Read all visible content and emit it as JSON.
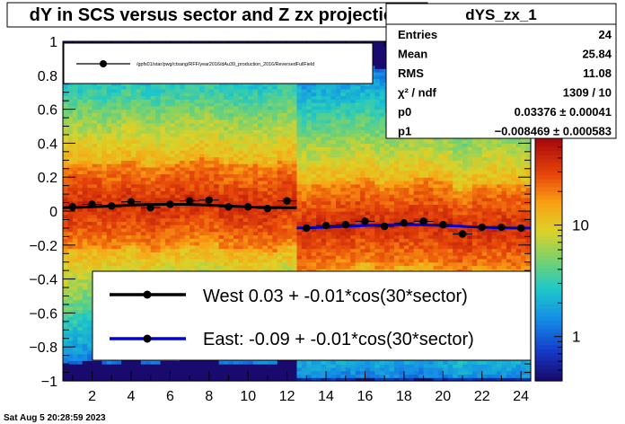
{
  "window": {
    "title": "dY in SCS versus sector and Z zx projection",
    "timestamp": "Sat Aug  5 20:28:59 2023"
  },
  "stats_box": {
    "name": "dYS_zx_1",
    "rows": [
      {
        "label": "Entries",
        "value": "24"
      },
      {
        "label": "Mean",
        "value": "25.84"
      },
      {
        "label": "RMS",
        "value": "11.08"
      },
      {
        "label": "χ² / ndf",
        "value": "1309 / 10"
      },
      {
        "label": "p0",
        "value": "0.03376 ± 0.00041"
      },
      {
        "label": "p1",
        "value": "−0.008469 ± 0.000583"
      }
    ]
  },
  "top_legend": {
    "text": "/gpfs01/star/pwg/ctsang/RFF/year2016/dAu39_production_2016/ReversedFullField"
  },
  "fit_legend": {
    "entries": [
      {
        "label": "West  0.03 + -0.01*cos(30*sector)",
        "color": "#000000"
      },
      {
        "label": "East: -0.09 + -0.01*cos(30*sector)",
        "color": "#0000dd"
      }
    ]
  },
  "chart_data": {
    "type": "scatter",
    "title": "dY in SCS versus sector and Z zx projection",
    "xlim": [
      0.5,
      24.5
    ],
    "ylim": [
      -1,
      1
    ],
    "x_ticks": [
      2,
      4,
      6,
      8,
      10,
      12,
      14,
      16,
      18,
      20,
      22,
      24
    ],
    "y_ticks": [
      -1,
      -0.8,
      -0.6,
      -0.4,
      -0.2,
      0,
      0.2,
      0.4,
      0.6,
      0.8,
      1
    ],
    "y_tick_labels": [
      "−1",
      "−0.8",
      "−0.6",
      "−0.4",
      "−0.2",
      "0",
      "0.2",
      "0.4",
      "0.6",
      "0.8",
      "1"
    ],
    "colorbar": {
      "scale": "log",
      "labels": [
        {
          "value": 1,
          "label": "1"
        },
        {
          "value": 10,
          "label": "10"
        }
      ],
      "range": [
        0.4,
        60
      ]
    },
    "series": [
      {
        "name": "West",
        "color": "#000000",
        "x": [
          1,
          2,
          3,
          4,
          5,
          6,
          7,
          8,
          9,
          10,
          11,
          12
        ],
        "y": [
          0.025,
          0.04,
          0.03,
          0.055,
          0.02,
          0.04,
          0.06,
          0.065,
          0.025,
          0.025,
          0.015,
          0.06
        ],
        "fit": {
          "p0": 0.03,
          "p1": -0.01,
          "range": [
            0.5,
            12.5
          ]
        }
      },
      {
        "name": "East",
        "color": "#0000dd",
        "x": [
          13,
          14,
          15,
          16,
          17,
          18,
          19,
          20,
          21,
          22,
          23,
          24
        ],
        "y": [
          -0.1,
          -0.085,
          -0.08,
          -0.06,
          -0.09,
          -0.07,
          -0.06,
          -0.08,
          -0.135,
          -0.095,
          -0.095,
          -0.1
        ],
        "fit": {
          "p0": -0.09,
          "p1": -0.01,
          "range": [
            12.5,
            24.5
          ]
        }
      }
    ]
  }
}
